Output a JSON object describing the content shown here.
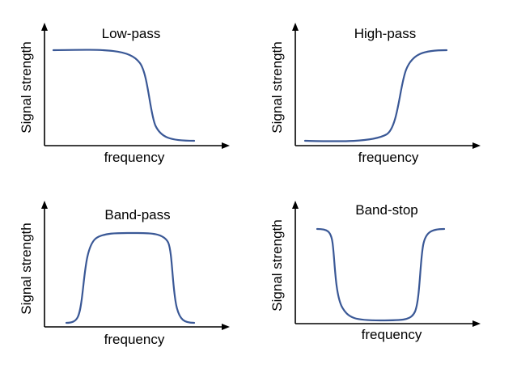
{
  "colors": {
    "curve": "#3a5896",
    "axis": "#000000",
    "background": "#ffffff"
  },
  "panels": [
    {
      "id": "low-pass",
      "title": "Low-pass",
      "xlabel": "frequency",
      "ylabel": "Signal strength"
    },
    {
      "id": "high-pass",
      "title": "High-pass",
      "xlabel": "frequency",
      "ylabel": "Signal strength"
    },
    {
      "id": "band-pass",
      "title": "Band-pass",
      "xlabel": "frequency",
      "ylabel": "Signal strength"
    },
    {
      "id": "band-stop",
      "title": "Band-stop",
      "xlabel": "frequency",
      "ylabel": "Signal strength"
    }
  ]
}
